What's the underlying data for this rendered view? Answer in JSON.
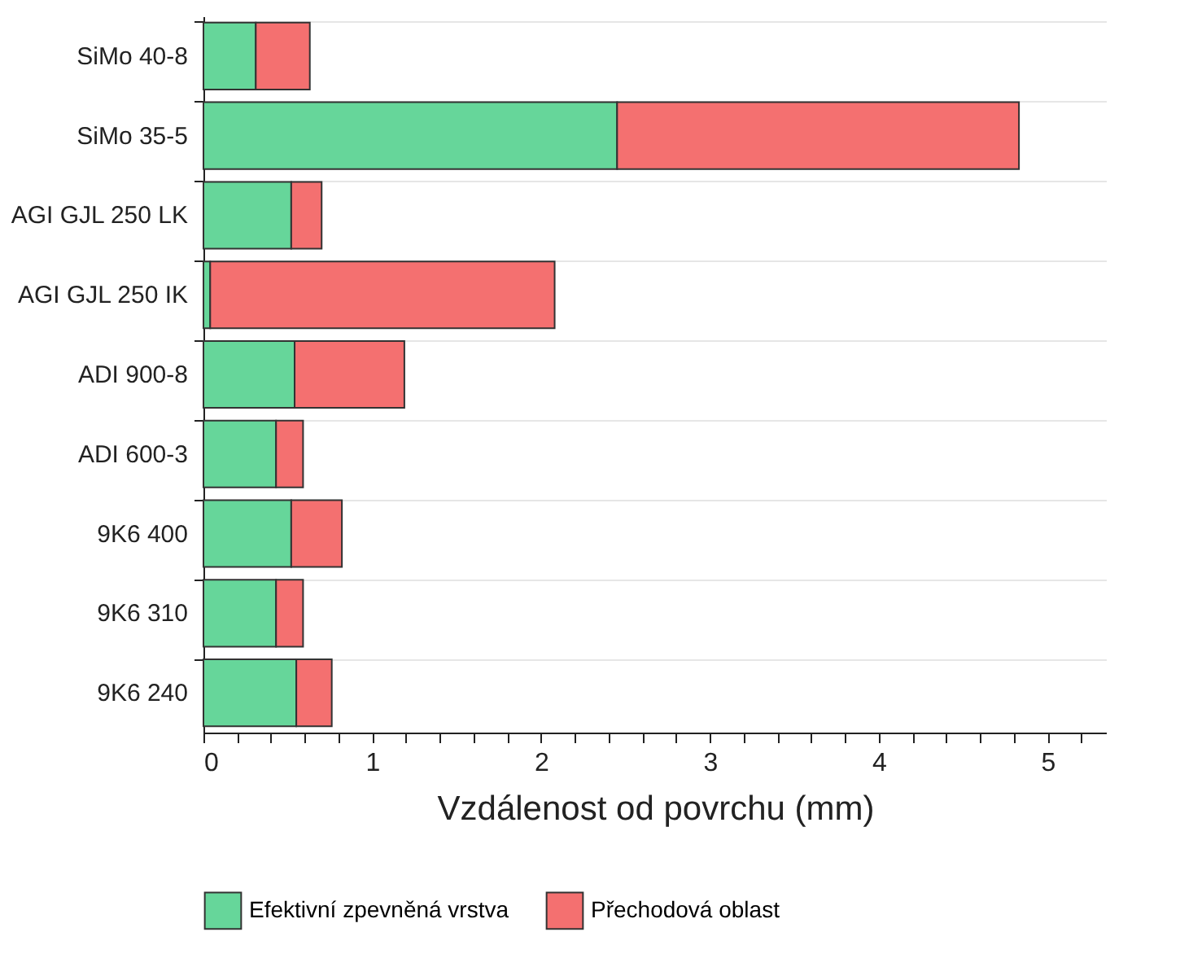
{
  "chart_data": {
    "type": "bar",
    "orientation": "horizontal",
    "stacked": true,
    "categories": [
      "SiMo 40-8",
      "SiMo 35-5",
      "AGI GJL 250 LK",
      "AGI GJL 250 IK",
      "ADI 900-8",
      "ADI 600-3",
      "9K6 400",
      "9K6 310",
      "9K6 240"
    ],
    "series": [
      {
        "name": "Efektivní zpevněná vrstva",
        "color": "#66d69a",
        "values": [
          0.31,
          2.45,
          0.52,
          0.04,
          0.54,
          0.43,
          0.52,
          0.43,
          0.55
        ]
      },
      {
        "name": "Přechodová oblast",
        "color": "#f47070",
        "values": [
          0.32,
          2.38,
          0.18,
          2.04,
          0.65,
          0.16,
          0.3,
          0.16,
          0.21
        ]
      }
    ],
    "xlabel": "Vzdálenost od povrchu (mm)",
    "xlim": [
      0,
      5.35
    ],
    "xticks": [
      0,
      {
        "value": 0.2,
        "label": null
      },
      {
        "value": 0.4,
        "label": null
      },
      {
        "value": 0.6,
        "label": null
      },
      {
        "value": 0.8,
        "label": null
      },
      1,
      {
        "value": 1.2,
        "label": null
      },
      {
        "value": 1.4,
        "label": null
      },
      {
        "value": 1.6,
        "label": null
      },
      {
        "value": 1.8,
        "label": null
      },
      2,
      {
        "value": 2.2,
        "label": null
      },
      {
        "value": 2.4,
        "label": null
      },
      {
        "value": 2.6,
        "label": null
      },
      {
        "value": 2.8,
        "label": null
      },
      3,
      {
        "value": 3.2,
        "label": null
      },
      {
        "value": 3.4,
        "label": null
      },
      {
        "value": 3.6,
        "label": null
      },
      {
        "value": 3.8,
        "label": null
      },
      4,
      {
        "value": 4.2,
        "label": null
      },
      {
        "value": 4.4,
        "label": null
      },
      {
        "value": 4.6,
        "label": null
      },
      {
        "value": 4.8,
        "label": null
      },
      5,
      {
        "value": 5.2,
        "label": null
      }
    ],
    "grid": "y",
    "legend": "bottom"
  }
}
